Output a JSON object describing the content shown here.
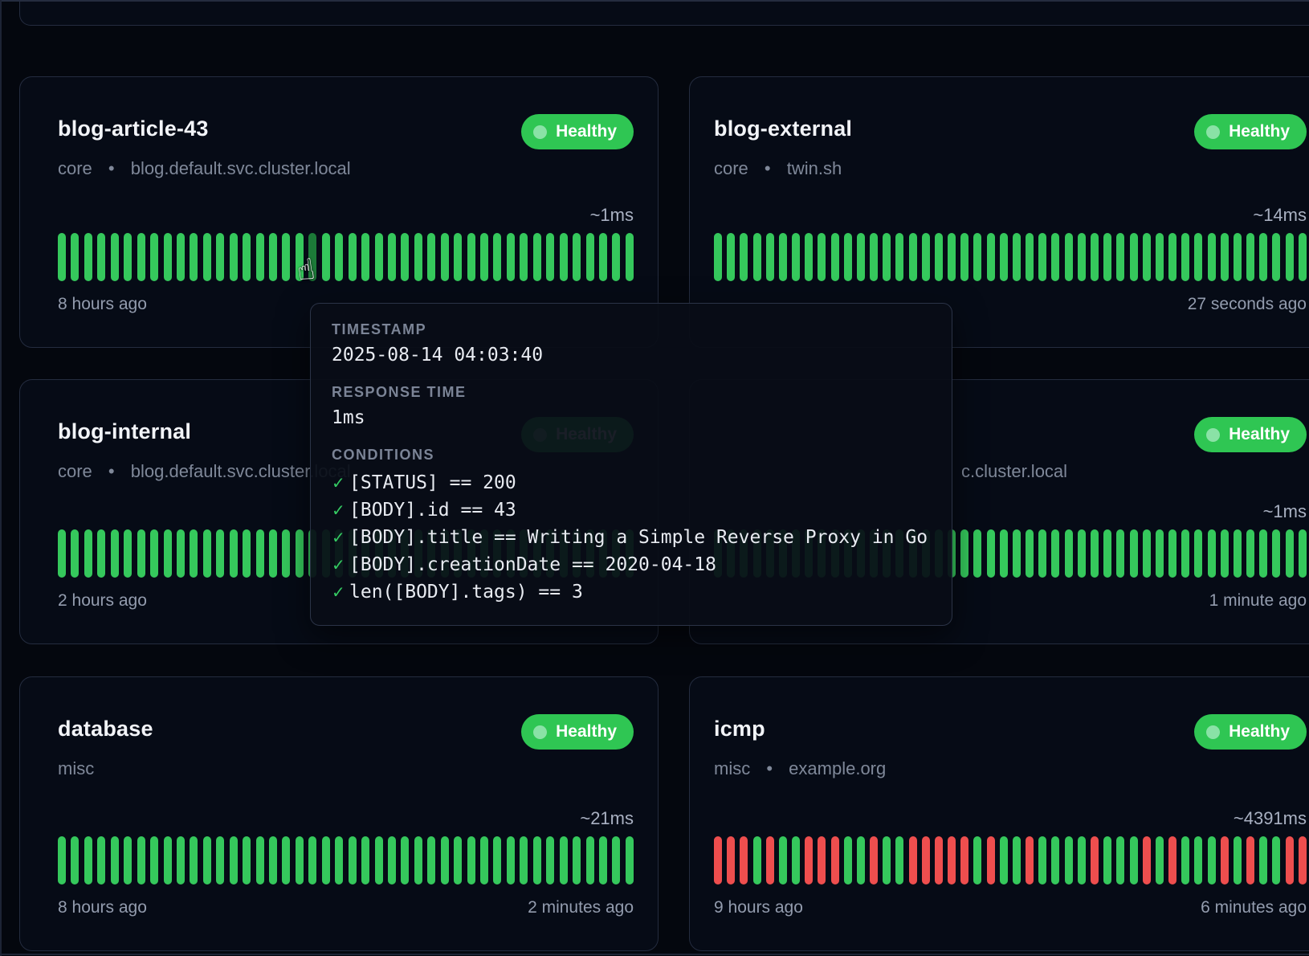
{
  "tooltip": {
    "timestamp_label": "TIMESTAMP",
    "timestamp_value": "2025-08-14 04:03:40",
    "response_time_label": "RESPONSE TIME",
    "response_time_value": "1ms",
    "conditions_label": "CONDITIONS",
    "check_glyph": "✓",
    "conditions": [
      "[STATUS] == 200",
      "[BODY].id == 43",
      "[BODY].title == Writing a Simple Reverse Proxy in Go",
      "[BODY].creationDate == 2020-04-18",
      "len([BODY].tags) == 3"
    ]
  },
  "separator": "•",
  "cursor_glyph": "☝",
  "colors": {
    "bar_up": "#35c85c",
    "bar_up_hover": "#1c7a38",
    "bar_down": "#ee4e4e",
    "badge_bg": "#2fc653",
    "badge_dot": "#8ae2a6"
  },
  "cards": [
    {
      "id": "blog-article-43",
      "title": "blog-article-43",
      "group": "core",
      "host": "blog.default.svc.cluster.local",
      "status": "Healthy",
      "avg_ms": "~1ms",
      "left_time": "8 hours ago",
      "right_time": "",
      "bars": {
        "count": 44,
        "hover_index": 19,
        "pattern": null
      }
    },
    {
      "id": "blog-external",
      "title": "blog-external",
      "group": "core",
      "host": "twin.sh",
      "status": "Healthy",
      "avg_ms": "~14ms",
      "left_time": "",
      "right_time": "27 seconds ago",
      "bars": {
        "count": 46,
        "hover_index": -1,
        "pattern": null
      }
    },
    {
      "id": "blog-internal",
      "title": "blog-internal",
      "group": "core",
      "host": "blog.default.svc.cluster.local",
      "status": "Healthy",
      "avg_ms": "",
      "left_time": "2 hours ago",
      "right_time": "",
      "bars": {
        "count": 44,
        "hover_index": -1,
        "pattern": null
      }
    },
    {
      "id": "occluded-endpoint",
      "title": "",
      "group": "",
      "host": "c.cluster.local",
      "status": "Healthy",
      "avg_ms": "~1ms",
      "left_time": "",
      "right_time": "1 minute ago",
      "bars": {
        "count": 46,
        "hover_index": -1,
        "pattern": null
      }
    },
    {
      "id": "database",
      "title": "database",
      "group": "misc",
      "host": "",
      "status": "Healthy",
      "avg_ms": "~21ms",
      "left_time": "8 hours ago",
      "right_time": "2 minutes ago",
      "bars": {
        "count": 44,
        "hover_index": -1,
        "pattern": null
      }
    },
    {
      "id": "icmp",
      "title": "icmp",
      "group": "misc",
      "host": "example.org",
      "status": "Healthy",
      "avg_ms": "~4391ms",
      "left_time": "9 hours ago",
      "right_time": "6 minutes ago",
      "bars": {
        "count": 46,
        "hover_index": -1,
        "pattern": [
          0,
          0,
          0,
          1,
          0,
          1,
          1,
          0,
          0,
          0,
          1,
          1,
          0,
          1,
          1,
          0,
          0,
          0,
          0,
          0,
          1,
          0,
          1,
          1,
          0,
          1,
          1,
          1,
          1,
          0,
          1,
          1,
          1,
          0,
          1,
          0,
          1,
          1,
          1,
          0,
          1,
          0,
          1,
          1,
          0,
          0
        ]
      }
    }
  ]
}
